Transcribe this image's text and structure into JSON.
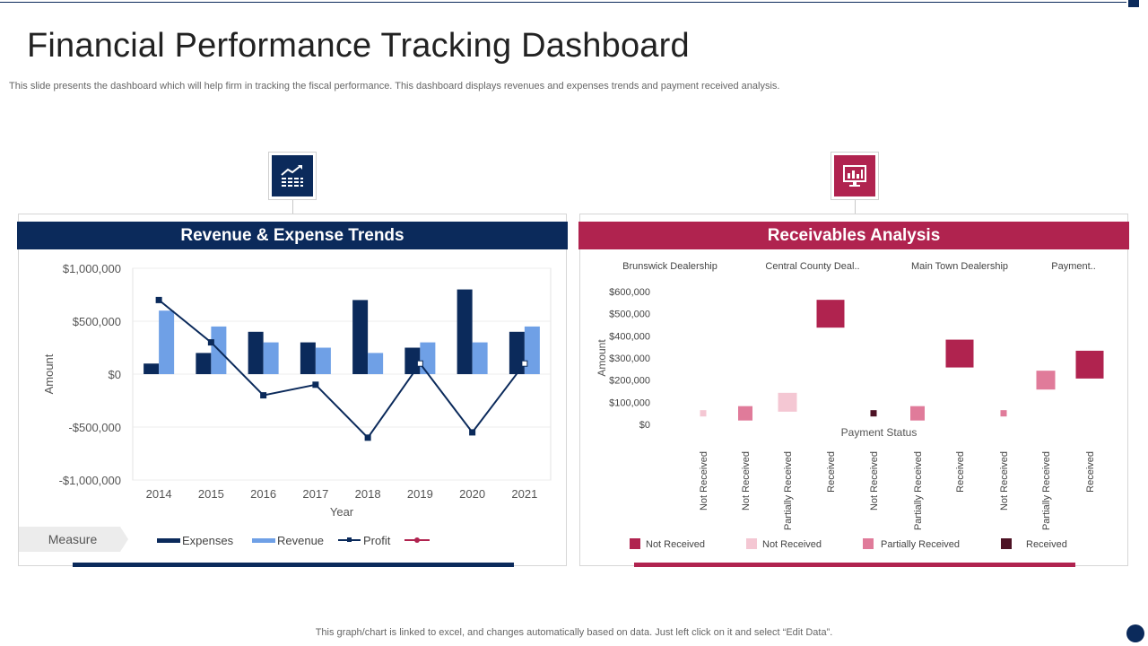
{
  "page": {
    "title": "Financial Performance Tracking Dashboard",
    "subtitle": "This slide presents the dashboard which will help firm in tracking the fiscal performance. This dashboard displays revenues and expenses trends and payment received analysis.",
    "footer_note": "This graph/chart is linked to excel,  and changes automatically based on data. Just left click on it and select “Edit Data”."
  },
  "colors": {
    "navy": "#0b2a5b",
    "crimson": "#b0234f",
    "revenue_blue": "#6fa0e6",
    "not_received_dark": "#b0234f",
    "not_received_light": "#f4c7d3",
    "partially_received": "#e07b9a",
    "received": "#4d1224"
  },
  "left_panel": {
    "header": "Revenue & Expense Trends",
    "icon": "growth-chart-icon"
  },
  "right_panel": {
    "header": "Receivables Analysis",
    "icon": "monitor-chart-icon"
  },
  "chart_data": [
    {
      "type": "bar",
      "title": "Revenue & Expense Trends",
      "xlabel": "Year",
      "ylabel": "Amount",
      "categories": [
        "2014",
        "2015",
        "2016",
        "2017",
        "2018",
        "2019",
        "2020",
        "2021"
      ],
      "series": [
        {
          "name": "Expenses",
          "type": "bar",
          "values": [
            100000,
            200000,
            400000,
            300000,
            700000,
            250000,
            800000,
            400000
          ]
        },
        {
          "name": "Revenue",
          "type": "bar",
          "values": [
            600000,
            450000,
            300000,
            250000,
            200000,
            300000,
            300000,
            450000
          ]
        },
        {
          "name": "Profit",
          "type": "line",
          "values": [
            700000,
            300000,
            -200000,
            -100000,
            -600000,
            100000,
            -550000,
            100000
          ]
        }
      ],
      "ylim": [
        -1000000,
        1000000
      ],
      "yticks": [
        1000000,
        500000,
        0,
        -500000,
        -1000000
      ],
      "ytick_labels": [
        "$1,000,000",
        "$500,000",
        "$0",
        "-$500,000",
        "-$1,000,000"
      ],
      "legend": {
        "measure_label": "Measure",
        "items": [
          "Expenses",
          "Revenue",
          "Profit"
        ]
      }
    },
    {
      "type": "scatter",
      "title": "Receivables Analysis",
      "xlabel": "Payment Status",
      "ylabel": "Amount",
      "groups": [
        "Brunswick Dealership",
        "Central County Deal..",
        "Main Town Dealership",
        "Payment.."
      ],
      "categories": [
        "Not Received",
        "Not Received",
        "Partially Received",
        "Received",
        "Not Received",
        "Partially Received",
        "Received",
        "Not Received",
        "Partially Received",
        "Received"
      ],
      "points": [
        {
          "status": "Not Received",
          "legend": "Not Received (light)",
          "value": 50000,
          "size": 1
        },
        {
          "status": "Not Received",
          "legend": "Partially Received",
          "value": 50000,
          "size": 2
        },
        {
          "status": "Partially Received",
          "legend": "Not Received (light)",
          "value": 100000,
          "size": 3
        },
        {
          "status": "Received",
          "legend": "Not Received",
          "value": 500000,
          "size": 4
        },
        {
          "status": "Not Received",
          "legend": "Received",
          "value": 50000,
          "size": 1
        },
        {
          "status": "Partially Received",
          "legend": "Partially Received",
          "value": 50000,
          "size": 2
        },
        {
          "status": "Received",
          "legend": "Not Received",
          "value": 320000,
          "size": 4
        },
        {
          "status": "Not Received",
          "legend": "Partially Received",
          "value": 50000,
          "size": 1
        },
        {
          "status": "Partially Received",
          "legend": "Partially Received",
          "value": 200000,
          "size": 3
        },
        {
          "status": "Received",
          "legend": "Not Received",
          "value": 270000,
          "size": 4
        }
      ],
      "ylim": [
        0,
        600000
      ],
      "yticks": [
        600000,
        500000,
        400000,
        300000,
        200000,
        100000,
        0
      ],
      "ytick_labels": [
        "$600,000",
        "$500,000",
        "$400,000",
        "$300,000",
        "$200,000",
        "$100,000",
        "$0"
      ],
      "legend": {
        "items": [
          "Not Received",
          "Not Received",
          "Partially Received",
          "Received"
        ]
      }
    }
  ]
}
